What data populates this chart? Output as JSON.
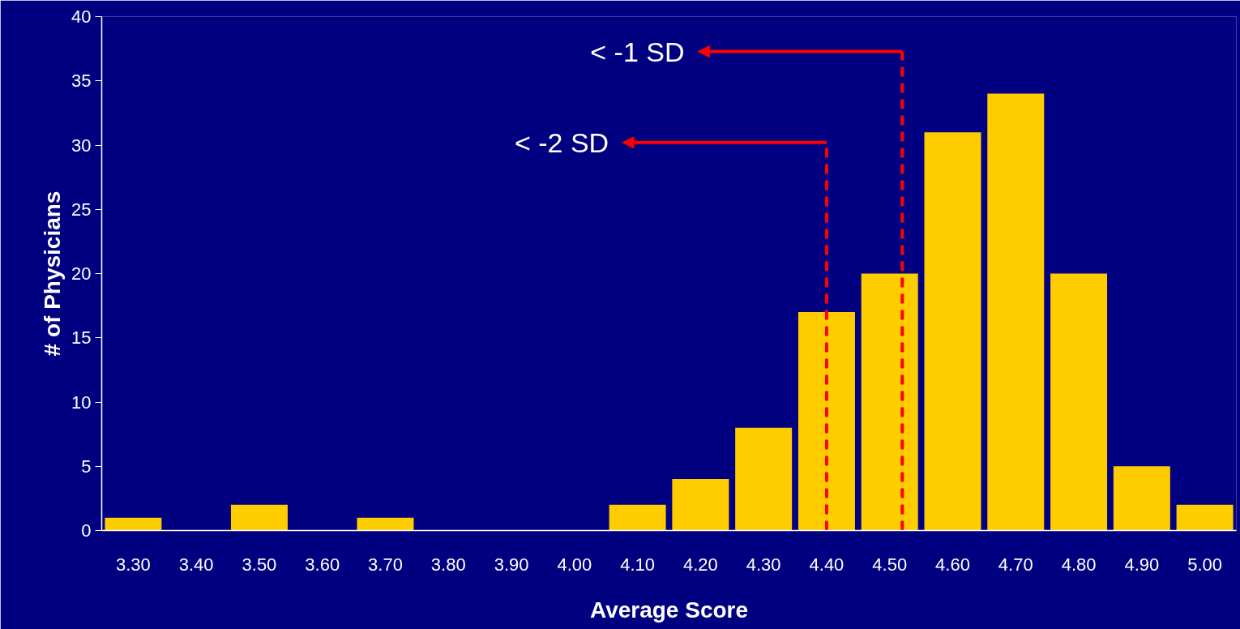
{
  "chart_data": {
    "type": "bar",
    "xlabel": "Average Score",
    "ylabel": "# of Physicians",
    "x": [
      3.3,
      3.4,
      3.5,
      3.6,
      3.7,
      3.8,
      3.9,
      4.0,
      4.1,
      4.2,
      4.3,
      4.4,
      4.5,
      4.6,
      4.7,
      4.8,
      4.9,
      5.0
    ],
    "values": [
      1,
      0,
      2,
      0,
      1,
      0,
      0,
      0,
      2,
      4,
      8,
      17,
      20,
      31,
      34,
      20,
      5,
      2
    ],
    "color": "#ffcc00",
    "xlim": [
      3.25,
      5.05
    ],
    "xticks": [
      {
        "value": 3.3,
        "label": "3.30"
      },
      {
        "value": 3.4,
        "label": "3.40"
      },
      {
        "value": 3.5,
        "label": "3.50"
      },
      {
        "value": 3.6,
        "label": "3.60"
      },
      {
        "value": 3.7,
        "label": "3.70"
      },
      {
        "value": 3.8,
        "label": "3.80"
      },
      {
        "value": 3.9,
        "label": "3.90"
      },
      {
        "value": 4.0,
        "label": "4.00"
      },
      {
        "value": 4.1,
        "label": "4.10"
      },
      {
        "value": 4.2,
        "label": "4.20"
      },
      {
        "value": 4.3,
        "label": "4.30"
      },
      {
        "value": 4.4,
        "label": "4.40"
      },
      {
        "value": 4.5,
        "label": "4.50"
      },
      {
        "value": 4.6,
        "label": "4.60"
      },
      {
        "value": 4.7,
        "label": "4.70"
      },
      {
        "value": 4.8,
        "label": "4.80"
      },
      {
        "value": 4.9,
        "label": "4.90"
      },
      {
        "value": 5.0,
        "label": "5.00"
      },
      {
        "value": 3.25,
        "label": null
      },
      {
        "value": 3.35,
        "label": null
      },
      {
        "value": 3.45,
        "label": null
      },
      {
        "value": 3.55,
        "label": null
      },
      {
        "value": 3.65,
        "label": null
      },
      {
        "value": 3.75,
        "label": null
      },
      {
        "value": 3.85,
        "label": null
      },
      {
        "value": 3.95,
        "label": null
      },
      {
        "value": 4.05,
        "label": null
      },
      {
        "value": 4.15,
        "label": null
      },
      {
        "value": 4.25,
        "label": null
      },
      {
        "value": 4.35,
        "label": null
      },
      {
        "value": 4.45,
        "label": null
      },
      {
        "value": 4.55,
        "label": null
      },
      {
        "value": 4.65,
        "label": null
      },
      {
        "value": 4.75,
        "label": null
      },
      {
        "value": 4.85,
        "label": null
      },
      {
        "value": 4.95,
        "label": null
      },
      {
        "value": 5.05,
        "label": null
      }
    ],
    "ylim": [
      0,
      40
    ],
    "yticks": [
      0,
      5,
      10,
      15,
      20,
      25,
      30,
      35,
      40
    ],
    "grid": false,
    "ref_lines": [
      {
        "axis": "x",
        "value": 4.4,
        "label": "< -2 SD",
        "color": "#ff0000",
        "line_style": "dashed"
      },
      {
        "axis": "x",
        "value": 4.52,
        "label": "< -1 SD",
        "color": "#ff0000",
        "line_style": "dashed"
      }
    ]
  }
}
